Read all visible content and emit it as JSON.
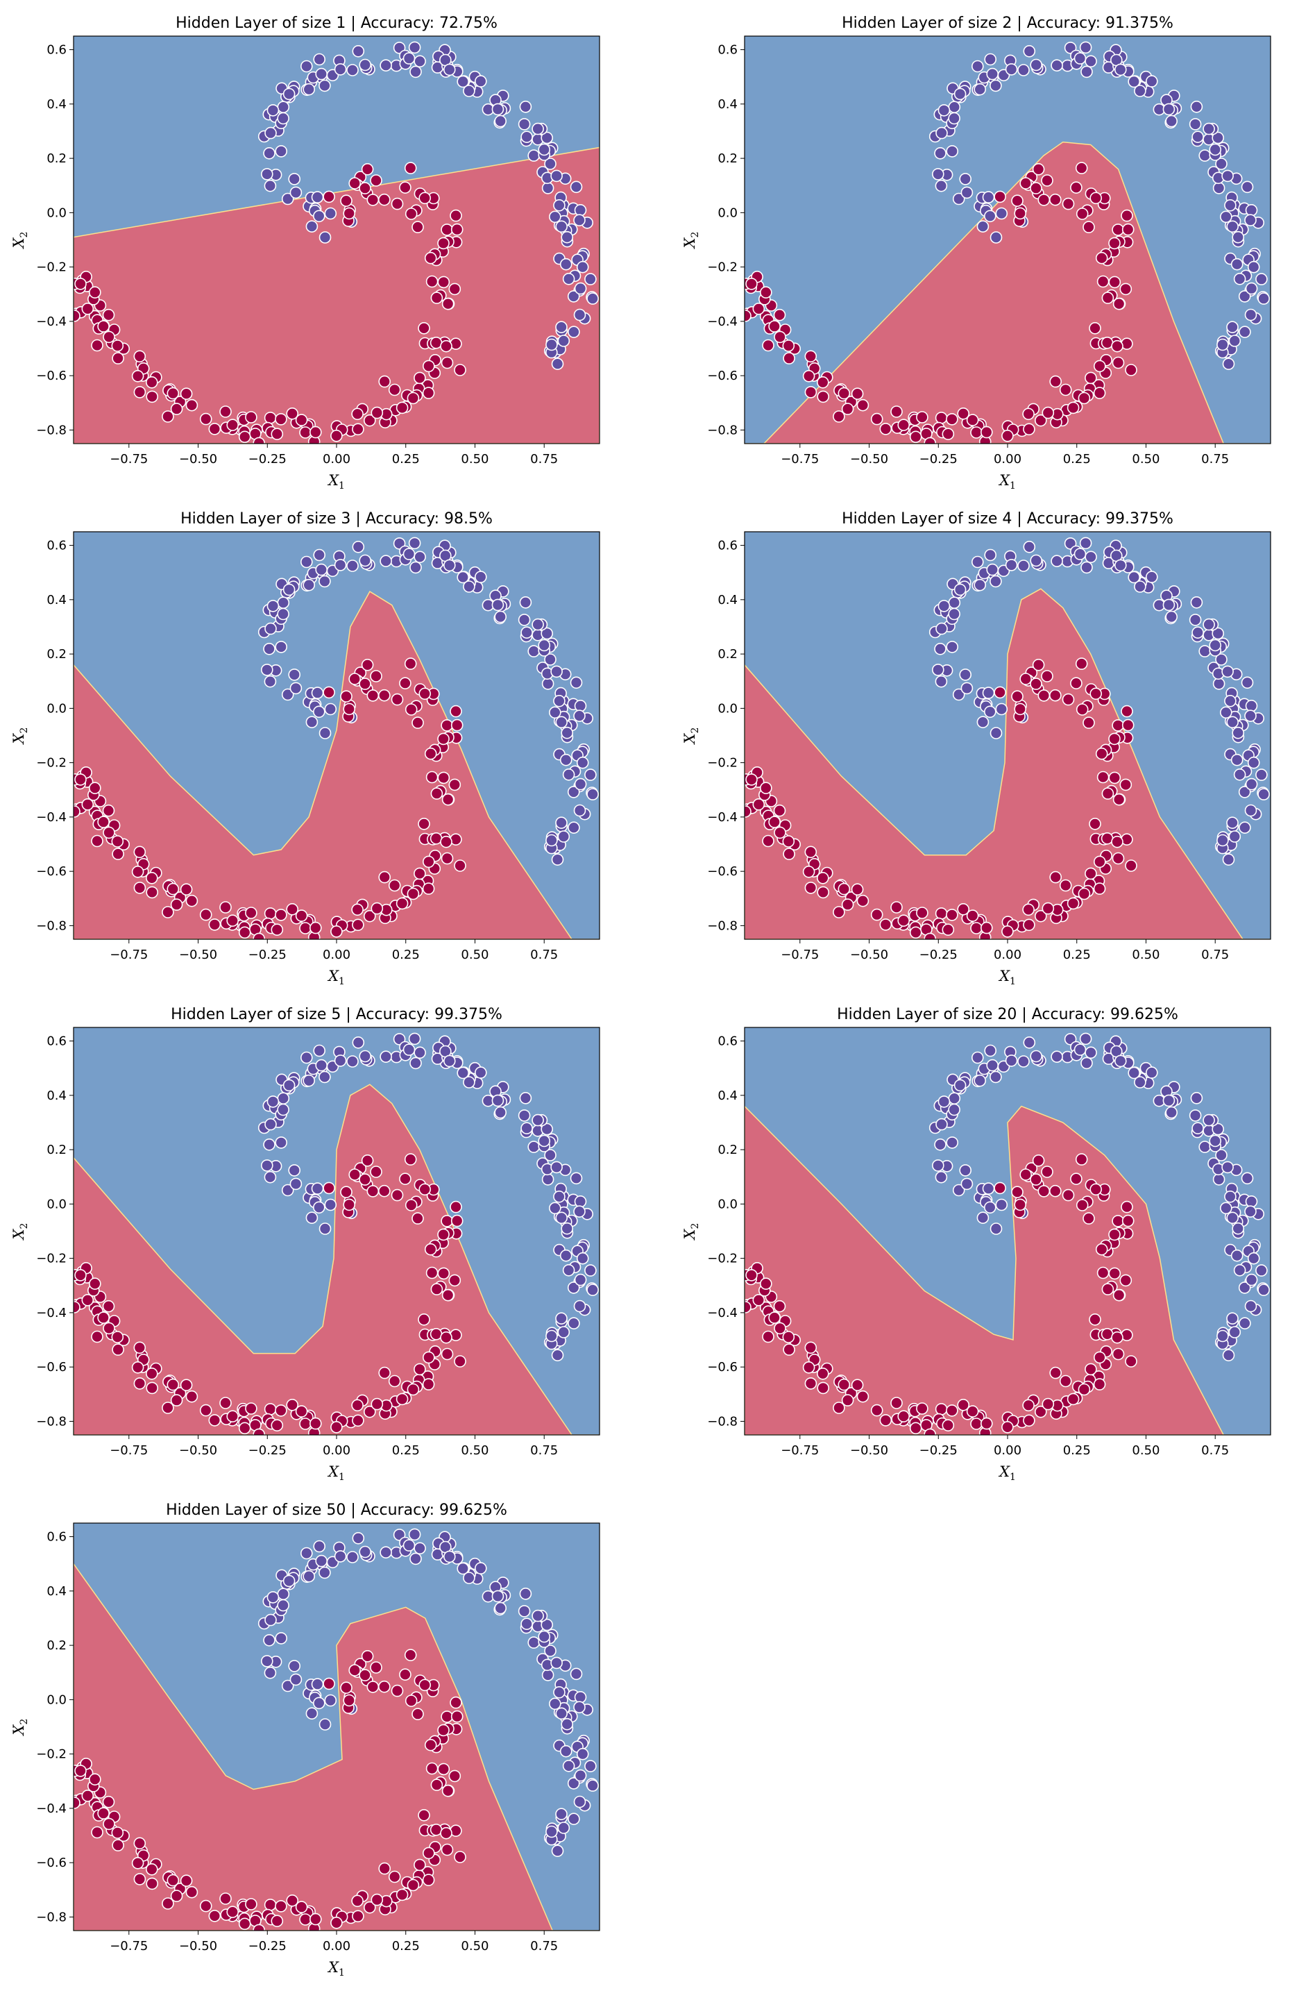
{
  "colors": {
    "blue_region": "#779ec9",
    "red_region": "#d6697d",
    "blue_point": "#5e4fa2",
    "red_point": "#9e0142",
    "point_edge": "#ffffff",
    "boundary": "#fee08b"
  },
  "chart_data": [
    {
      "type": "scatter",
      "title": "Hidden Layer of size 1 | Accuracy: 72.75%",
      "xlabel": "X1",
      "ylabel": "X2",
      "xlim": [
        -0.95,
        0.95
      ],
      "ylim": [
        -0.85,
        0.65
      ],
      "xticks": [
        "-0.75",
        "-0.50",
        "-0.25",
        "0.00",
        "0.25",
        "0.50",
        "0.75"
      ],
      "yticks": [
        "-0.8",
        "-0.6",
        "-0.4",
        "-0.2",
        "0.0",
        "0.2",
        "0.4",
        "0.6"
      ],
      "series": [
        {
          "values": "purple outer spiral arm"
        },
        {
          "values": "red inner spiral arm"
        }
      ],
      "decision_boundary": [
        [
          -0.95,
          -0.09
        ],
        [
          0.95,
          0.24
        ]
      ]
    },
    {
      "type": "scatter",
      "title": "Hidden Layer of size 2 | Accuracy: 91.375%",
      "xlabel": "X1",
      "ylabel": "X2",
      "xlim": [
        -0.95,
        0.95
      ],
      "ylim": [
        -0.85,
        0.65
      ],
      "xticks": [
        "-0.75",
        "-0.50",
        "-0.25",
        "0.00",
        "0.25",
        "0.50",
        "0.75"
      ],
      "yticks": [
        "-0.8",
        "-0.6",
        "-0.4",
        "-0.2",
        "0.0",
        "0.2",
        "0.4",
        "0.6"
      ],
      "decision_boundary": [
        [
          -0.88,
          -0.85
        ],
        [
          0.13,
          0.21
        ],
        [
          0.2,
          0.26
        ],
        [
          0.3,
          0.25
        ],
        [
          0.4,
          0.16
        ],
        [
          0.5,
          -0.12
        ],
        [
          0.6,
          -0.4
        ],
        [
          0.78,
          -0.85
        ]
      ]
    },
    {
      "type": "scatter",
      "title": "Hidden Layer of size 3 | Accuracy: 98.5%",
      "xlabel": "X1",
      "ylabel": "X2",
      "xlim": [
        -0.95,
        0.95
      ],
      "ylim": [
        -0.85,
        0.65
      ],
      "xticks": [
        "-0.75",
        "-0.50",
        "-0.25",
        "0.00",
        "0.25",
        "0.50",
        "0.75"
      ],
      "yticks": [
        "-0.8",
        "-0.6",
        "-0.4",
        "-0.2",
        "0.0",
        "0.2",
        "0.4",
        "0.6"
      ],
      "decision_boundary": [
        [
          -0.95,
          0.16
        ],
        [
          -0.6,
          -0.25
        ],
        [
          -0.3,
          -0.54
        ],
        [
          -0.2,
          -0.52
        ],
        [
          -0.1,
          -0.4
        ],
        [
          0.0,
          -0.08
        ],
        [
          0.05,
          0.3
        ],
        [
          0.12,
          0.43
        ],
        [
          0.2,
          0.38
        ],
        [
          0.3,
          0.18
        ],
        [
          0.45,
          -0.15
        ],
        [
          0.55,
          -0.4
        ],
        [
          0.85,
          -0.85
        ]
      ]
    },
    {
      "type": "scatter",
      "title": "Hidden Layer of size 4 | Accuracy: 99.375%",
      "xlabel": "X1",
      "ylabel": "X2",
      "xlim": [
        -0.95,
        0.95
      ],
      "ylim": [
        -0.85,
        0.65
      ],
      "xticks": [
        "-0.75",
        "-0.50",
        "-0.25",
        "0.00",
        "0.25",
        "0.50",
        "0.75"
      ],
      "yticks": [
        "-0.8",
        "-0.6",
        "-0.4",
        "-0.2",
        "0.0",
        "0.2",
        "0.4",
        "0.6"
      ],
      "decision_boundary": [
        [
          -0.95,
          0.16
        ],
        [
          -0.6,
          -0.25
        ],
        [
          -0.3,
          -0.54
        ],
        [
          -0.15,
          -0.54
        ],
        [
          -0.05,
          -0.45
        ],
        [
          -0.01,
          -0.2
        ],
        [
          0.0,
          0.2
        ],
        [
          0.05,
          0.4
        ],
        [
          0.12,
          0.44
        ],
        [
          0.2,
          0.37
        ],
        [
          0.3,
          0.2
        ],
        [
          0.45,
          -0.15
        ],
        [
          0.55,
          -0.4
        ],
        [
          0.85,
          -0.85
        ]
      ]
    },
    {
      "type": "scatter",
      "title": "Hidden Layer of size 5 | Accuracy: 99.375%",
      "xlabel": "X1",
      "ylabel": "X2",
      "xlim": [
        -0.95,
        0.95
      ],
      "ylim": [
        -0.85,
        0.65
      ],
      "xticks": [
        "-0.75",
        "-0.50",
        "-0.25",
        "0.00",
        "0.25",
        "0.50",
        "0.75"
      ],
      "yticks": [
        "-0.8",
        "-0.6",
        "-0.4",
        "-0.2",
        "0.0",
        "0.2",
        "0.4",
        "0.6"
      ],
      "decision_boundary": [
        [
          -0.95,
          0.17
        ],
        [
          -0.6,
          -0.24
        ],
        [
          -0.3,
          -0.55
        ],
        [
          -0.15,
          -0.55
        ],
        [
          -0.05,
          -0.45
        ],
        [
          -0.01,
          -0.2
        ],
        [
          0.0,
          0.2
        ],
        [
          0.05,
          0.4
        ],
        [
          0.12,
          0.44
        ],
        [
          0.2,
          0.37
        ],
        [
          0.3,
          0.2
        ],
        [
          0.45,
          -0.15
        ],
        [
          0.55,
          -0.4
        ],
        [
          0.85,
          -0.85
        ]
      ]
    },
    {
      "type": "scatter",
      "title": "Hidden Layer of size 20 | Accuracy: 99.625%",
      "xlabel": "X1",
      "ylabel": "X2",
      "xlim": [
        -0.95,
        0.95
      ],
      "ylim": [
        -0.85,
        0.65
      ],
      "xticks": [
        "-0.75",
        "-0.50",
        "-0.25",
        "0.00",
        "0.25",
        "0.50",
        "0.75"
      ],
      "yticks": [
        "-0.8",
        "-0.6",
        "-0.4",
        "-0.2",
        "0.0",
        "0.2",
        "0.4",
        "0.6"
      ],
      "decision_boundary": [
        [
          -0.95,
          0.36
        ],
        [
          -0.6,
          0.0
        ],
        [
          -0.3,
          -0.32
        ],
        [
          -0.05,
          -0.48
        ],
        [
          0.02,
          -0.5
        ],
        [
          0.03,
          -0.2
        ],
        [
          0.0,
          0.3
        ],
        [
          0.05,
          0.36
        ],
        [
          0.2,
          0.3
        ],
        [
          0.35,
          0.18
        ],
        [
          0.5,
          0.0
        ],
        [
          0.55,
          -0.2
        ],
        [
          0.6,
          -0.5
        ],
        [
          0.78,
          -0.85
        ]
      ]
    },
    {
      "type": "scatter",
      "title": "Hidden Layer of size 50 | Accuracy: 99.625%",
      "xlabel": "X1",
      "ylabel": "X2",
      "xlim": [
        -0.95,
        0.95
      ],
      "ylim": [
        -0.85,
        0.65
      ],
      "xticks": [
        "-0.75",
        "-0.50",
        "-0.25",
        "0.00",
        "0.25",
        "0.50",
        "0.75"
      ],
      "yticks": [
        "-0.8",
        "-0.6",
        "-0.4",
        "-0.2",
        "0.0",
        "0.2",
        "0.4",
        "0.6"
      ],
      "decision_boundary": [
        [
          -0.95,
          0.5
        ],
        [
          -0.6,
          0.0
        ],
        [
          -0.4,
          -0.28
        ],
        [
          -0.3,
          -0.33
        ],
        [
          -0.15,
          -0.3
        ],
        [
          0.02,
          -0.22
        ],
        [
          0.0,
          0.2
        ],
        [
          0.05,
          0.28
        ],
        [
          0.25,
          0.34
        ],
        [
          0.32,
          0.3
        ],
        [
          0.45,
          0.0
        ],
        [
          0.55,
          -0.3
        ],
        [
          0.78,
          -0.85
        ]
      ]
    }
  ]
}
